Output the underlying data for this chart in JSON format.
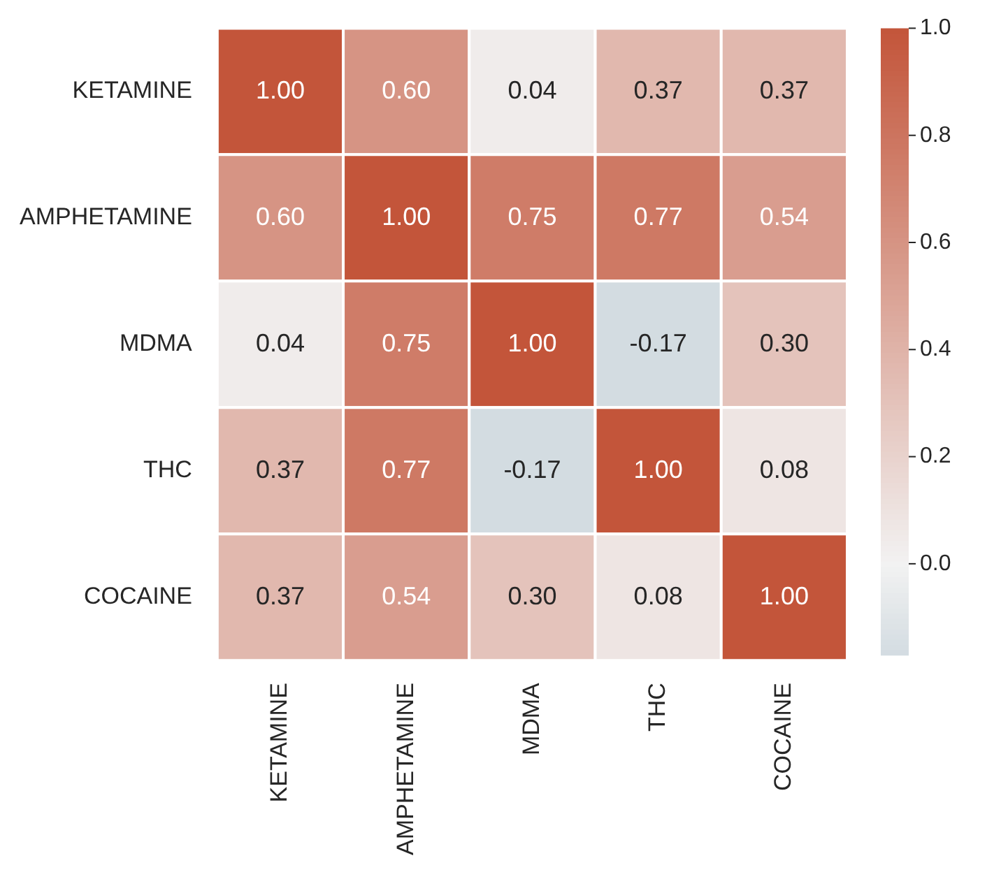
{
  "chart_data": {
    "type": "heatmap",
    "categories": [
      "KETAMINE",
      "AMPHETAMINE",
      "MDMA",
      "THC",
      "COCAINE"
    ],
    "y_categories": [
      "KETAMINE",
      "AMPHETAMINE",
      "MDMA",
      "THC",
      "COCAINE"
    ],
    "cells": [
      [
        1.0,
        0.6,
        0.04,
        0.37,
        0.37
      ],
      [
        0.6,
        1.0,
        0.75,
        0.77,
        0.54
      ],
      [
        0.04,
        0.75,
        1.0,
        -0.17,
        0.3
      ],
      [
        0.37,
        0.77,
        -0.17,
        1.0,
        0.08
      ],
      [
        0.37,
        0.54,
        0.3,
        0.08,
        1.0
      ]
    ],
    "cell_labels": [
      [
        "1.00",
        "0.60",
        "0.04",
        "0.37",
        "0.37"
      ],
      [
        "0.60",
        "1.00",
        "0.75",
        "0.77",
        "0.54"
      ],
      [
        "0.04",
        "0.75",
        "1.00",
        "-0.17",
        "0.30"
      ],
      [
        "0.37",
        "0.77",
        "-0.17",
        "1.00",
        "0.08"
      ],
      [
        "0.37",
        "0.54",
        "0.30",
        "0.08",
        "1.00"
      ]
    ],
    "clim": [
      -0.17,
      1.0
    ],
    "cticks": [
      {
        "value": 0,
        "label": "0.0"
      },
      {
        "value": 0.2,
        "label": "0.2"
      },
      {
        "value": 0.4,
        "label": "0.4"
      },
      {
        "value": 0.6,
        "label": "0.6"
      },
      {
        "value": 0.8,
        "label": "0.8"
      },
      {
        "value": 1,
        "label": "1.0"
      }
    ]
  }
}
